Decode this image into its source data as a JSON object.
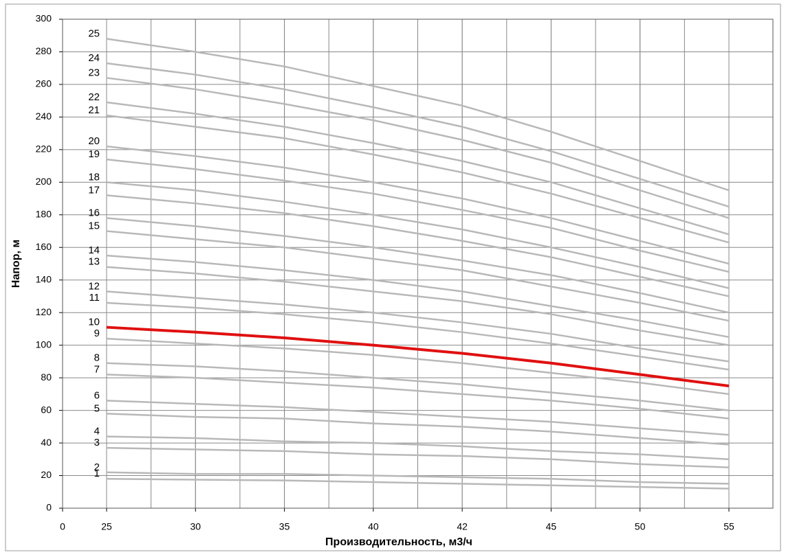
{
  "chart_data": {
    "type": "line",
    "x_label": "Производительность, м3/ч",
    "y_label": "Напор,  м",
    "categories": [
      "0",
      "25",
      "30",
      "35",
      "40",
      "42",
      "45",
      "50",
      "55"
    ],
    "ylim": [
      0,
      300
    ],
    "yticks": [
      0,
      20,
      40,
      60,
      80,
      100,
      120,
      140,
      160,
      180,
      200,
      220,
      240,
      260,
      280,
      300
    ],
    "grid": true,
    "series": [
      {
        "name": "1",
        "color": "#b8b8b8",
        "values": [
          null,
          18,
          17.5,
          17,
          16,
          15,
          14,
          13,
          12
        ]
      },
      {
        "name": "2",
        "color": "#b8b8b8",
        "values": [
          null,
          22,
          21,
          21,
          20,
          19,
          18,
          16,
          15
        ]
      },
      {
        "name": "3",
        "color": "#b8b8b8",
        "values": [
          null,
          37,
          36,
          35,
          33,
          32,
          30,
          27,
          25
        ]
      },
      {
        "name": "4",
        "color": "#b8b8b8",
        "values": [
          null,
          44,
          43,
          41,
          40,
          38,
          35,
          33,
          30
        ]
      },
      {
        "name": "5",
        "color": "#b8b8b8",
        "values": [
          null,
          58,
          56,
          55,
          52,
          50,
          47,
          43,
          39
        ]
      },
      {
        "name": "6",
        "color": "#b8b8b8",
        "values": [
          null,
          66,
          64,
          62,
          59,
          56,
          53,
          49,
          45
        ]
      },
      {
        "name": "7",
        "color": "#b8b8b8",
        "values": [
          null,
          82,
          80,
          77,
          74,
          70,
          66,
          61,
          55
        ]
      },
      {
        "name": "8",
        "color": "#b8b8b8",
        "values": [
          null,
          89,
          87,
          84,
          80,
          76,
          71,
          66,
          60
        ]
      },
      {
        "name": "9",
        "color": "#b8b8b8",
        "values": [
          null,
          104,
          101,
          98,
          94,
          89,
          83,
          77,
          70
        ]
      },
      {
        "name": "10",
        "color": "#e01010",
        "values": [
          null,
          111,
          108,
          104.5,
          100,
          95,
          89,
          82,
          75
        ]
      },
      {
        "name": "11",
        "color": "#b8b8b8",
        "values": [
          null,
          126,
          123,
          119,
          114,
          108,
          101,
          93,
          85
        ]
      },
      {
        "name": "12",
        "color": "#b8b8b8",
        "values": [
          null,
          133,
          129,
          125,
          120,
          114,
          107,
          98,
          90
        ]
      },
      {
        "name": "13",
        "color": "#b8b8b8",
        "values": [
          null,
          148,
          144,
          139,
          133,
          127,
          119,
          109,
          100
        ]
      },
      {
        "name": "14",
        "color": "#b8b8b8",
        "values": [
          null,
          155,
          151,
          146,
          140,
          133,
          124,
          115,
          105
        ]
      },
      {
        "name": "15",
        "color": "#b8b8b8",
        "values": [
          null,
          170,
          165,
          160,
          153,
          146,
          136,
          126,
          115
        ]
      },
      {
        "name": "16",
        "color": "#b8b8b8",
        "values": [
          null,
          178,
          173,
          167,
          160,
          152,
          143,
          132,
          120
        ]
      },
      {
        "name": "17",
        "color": "#b8b8b8",
        "values": [
          null,
          192,
          187,
          181,
          173,
          164,
          154,
          142,
          130
        ]
      },
      {
        "name": "18",
        "color": "#b8b8b8",
        "values": [
          null,
          200,
          195,
          188,
          180,
          171,
          160,
          148,
          135
        ]
      },
      {
        "name": "19",
        "color": "#b8b8b8",
        "values": [
          null,
          214,
          208,
          201,
          193,
          183,
          172,
          158,
          145
        ]
      },
      {
        "name": "20",
        "color": "#b8b8b8",
        "values": [
          null,
          222,
          216,
          209,
          200,
          190,
          178,
          164,
          150
        ]
      },
      {
        "name": "21",
        "color": "#b8b8b8",
        "values": [
          null,
          241,
          234,
          227,
          217,
          206,
          193,
          178,
          163
        ]
      },
      {
        "name": "22",
        "color": "#b8b8b8",
        "values": [
          null,
          249,
          242,
          234,
          224,
          213,
          200,
          184,
          168
        ]
      },
      {
        "name": "23",
        "color": "#b8b8b8",
        "values": [
          null,
          264,
          257,
          248,
          238,
          226,
          212,
          195,
          178
        ]
      },
      {
        "name": "24",
        "color": "#b8b8b8",
        "values": [
          null,
          273,
          266,
          257,
          246,
          234,
          219,
          202,
          185
        ]
      },
      {
        "name": "25",
        "color": "#b8b8b8",
        "values": [
          null,
          288,
          280,
          271,
          259,
          247,
          231,
          213,
          195
        ]
      }
    ]
  }
}
